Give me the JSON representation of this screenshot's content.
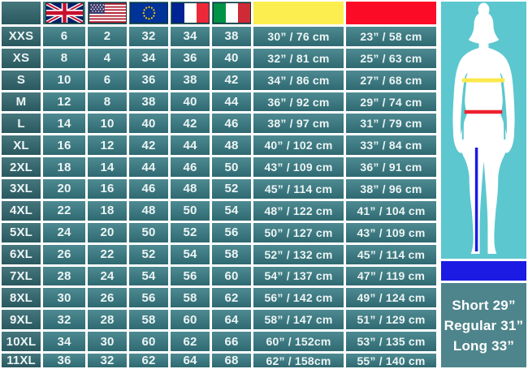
{
  "table": {
    "corner_label": "",
    "flag_columns": [
      "uk-flag",
      "us-flag",
      "eu-flag",
      "france-flag",
      "italy-flag"
    ],
    "measure_columns": [
      {
        "name": "bust",
        "color": "#fdee4f"
      },
      {
        "name": "waist",
        "color": "#fb0b26"
      }
    ],
    "rows": [
      {
        "size": "XXS",
        "values": [
          "6",
          "2",
          "32",
          "34",
          "38",
          "30” / 76 cm",
          "23” / 58 cm"
        ]
      },
      {
        "size": "XS",
        "values": [
          "8",
          "4",
          "34",
          "36",
          "40",
          "32” / 81 cm",
          "25” / 63 cm"
        ]
      },
      {
        "size": "S",
        "values": [
          "10",
          "6",
          "36",
          "38",
          "42",
          "34” / 86 cm",
          "27” / 68 cm"
        ]
      },
      {
        "size": "M",
        "values": [
          "12",
          "8",
          "38",
          "40",
          "44",
          "36” / 92 cm",
          "29” / 74 cm"
        ]
      },
      {
        "size": "L",
        "values": [
          "14",
          "10",
          "40",
          "42",
          "46",
          "38” / 97 cm",
          "31” / 79 cm"
        ]
      },
      {
        "size": "XL",
        "values": [
          "16",
          "12",
          "42",
          "44",
          "48",
          "40” / 102 cm",
          "33” / 84 cm"
        ]
      },
      {
        "size": "2XL",
        "values": [
          "18",
          "14",
          "44",
          "46",
          "50",
          "43” / 109 cm",
          "36” / 91 cm"
        ]
      },
      {
        "size": "3XL",
        "values": [
          "20",
          "16",
          "46",
          "48",
          "52",
          "45” / 114 cm",
          "38” / 96 cm"
        ]
      },
      {
        "size": "4XL",
        "values": [
          "22",
          "18",
          "48",
          "50",
          "54",
          "48” / 122 cm",
          "41” / 104 cm"
        ]
      },
      {
        "size": "5XL",
        "values": [
          "24",
          "20",
          "50",
          "52",
          "56",
          "50” / 127 cm",
          "43” / 109 cm"
        ]
      },
      {
        "size": "6XL",
        "values": [
          "26",
          "22",
          "52",
          "54",
          "58",
          "52” / 132 cm",
          "45” / 114 cm"
        ]
      },
      {
        "size": "7XL",
        "values": [
          "28",
          "24",
          "54",
          "56",
          "60",
          "54” / 137 cm",
          "47” / 119 cm"
        ]
      },
      {
        "size": "8XL",
        "values": [
          "30",
          "26",
          "56",
          "58",
          "62",
          "56” / 142 cm",
          "49” / 124 cm"
        ]
      },
      {
        "size": "9XL",
        "values": [
          "32",
          "28",
          "58",
          "60",
          "64",
          "58” / 147 cm",
          "51” / 129 cm"
        ]
      },
      {
        "size": "10XL",
        "values": [
          "34",
          "30",
          "60",
          "62",
          "66",
          "60” / 152cm",
          "53” / 135 cm"
        ]
      },
      {
        "size": "11XL",
        "values": [
          "36",
          "32",
          "62",
          "64",
          "68",
          "62” / 158cm",
          "55” / 140 cm"
        ]
      }
    ]
  },
  "side_panel": {
    "lengths": [
      "Short 29”",
      "Regular 31”",
      "Long 33”"
    ]
  },
  "colors": {
    "data_cell_teal": "#3d7b83",
    "label_cell_teal": "#35666e",
    "bust_header_yellow": "#fdee4f",
    "waist_header_red": "#fb0b26",
    "figure_background": "#5cc7cf",
    "bust_line_yellow": "#fde94d",
    "waist_line_red": "#ee2231",
    "inseam_line_blue": "#1b1be4",
    "inseam_bar_blue": "#1b1be4",
    "lengths_panel_teal": "#4e858c"
  }
}
